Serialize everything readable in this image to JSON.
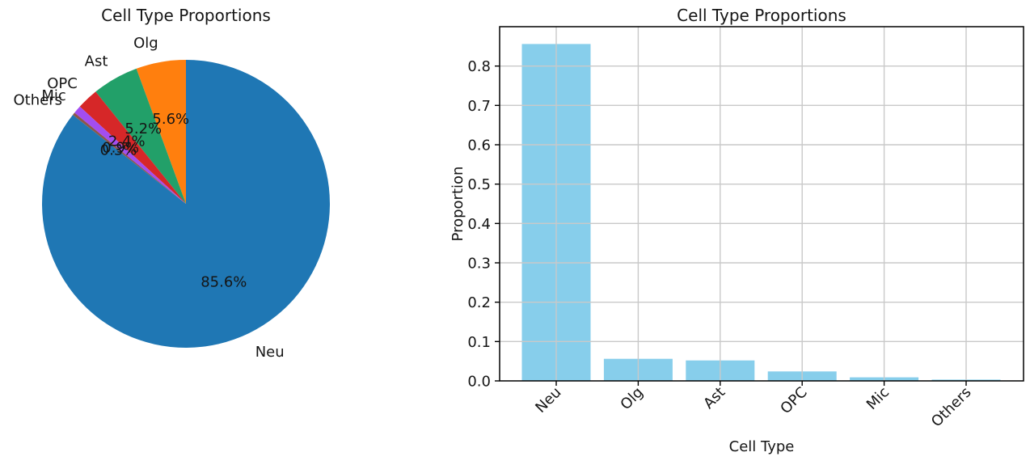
{
  "figure": {
    "background": "#ffffff",
    "text_color": "#151515",
    "grid_color": "#c9c9c9",
    "spine_color": "#000000"
  },
  "chart_data": [
    {
      "type": "pie",
      "title": "Cell Type Proportions",
      "labels": [
        "Neu",
        "Olg",
        "Ast",
        "OPC",
        "Mic",
        "Others"
      ],
      "values": [
        85.6,
        5.6,
        5.2,
        2.4,
        0.9,
        0.3
      ],
      "unit": "percent",
      "pct_labels": [
        "85.6%",
        "5.6%",
        "5.2%",
        "2.4%",
        "0.9%",
        "0.3%"
      ],
      "colors": [
        "#1f77b4",
        "#ff7f0e",
        "#22a069",
        "#d62728",
        "#a34df0",
        "#8c564b"
      ],
      "start_angle": 90,
      "counterclockwise": true,
      "legend": "none"
    },
    {
      "type": "bar",
      "title": "Cell Type Proportions",
      "xlabel": "Cell Type",
      "ylabel": "Proportion",
      "categories": [
        "Neu",
        "Olg",
        "Ast",
        "OPC",
        "Mic",
        "Others"
      ],
      "values": [
        0.856,
        0.056,
        0.052,
        0.024,
        0.009,
        0.003
      ],
      "bar_color": "#87ceeb",
      "ylim": [
        0,
        0.9
      ],
      "yticks": [
        "0.0",
        "0.1",
        "0.2",
        "0.3",
        "0.4",
        "0.5",
        "0.6",
        "0.7",
        "0.8"
      ],
      "ytick_values": [
        0,
        0.1,
        0.2,
        0.3,
        0.4,
        0.5,
        0.6,
        0.7,
        0.8
      ],
      "grid": true,
      "grid_over_bars": true,
      "xtick_rotation_deg": 45,
      "legend": "none"
    }
  ]
}
